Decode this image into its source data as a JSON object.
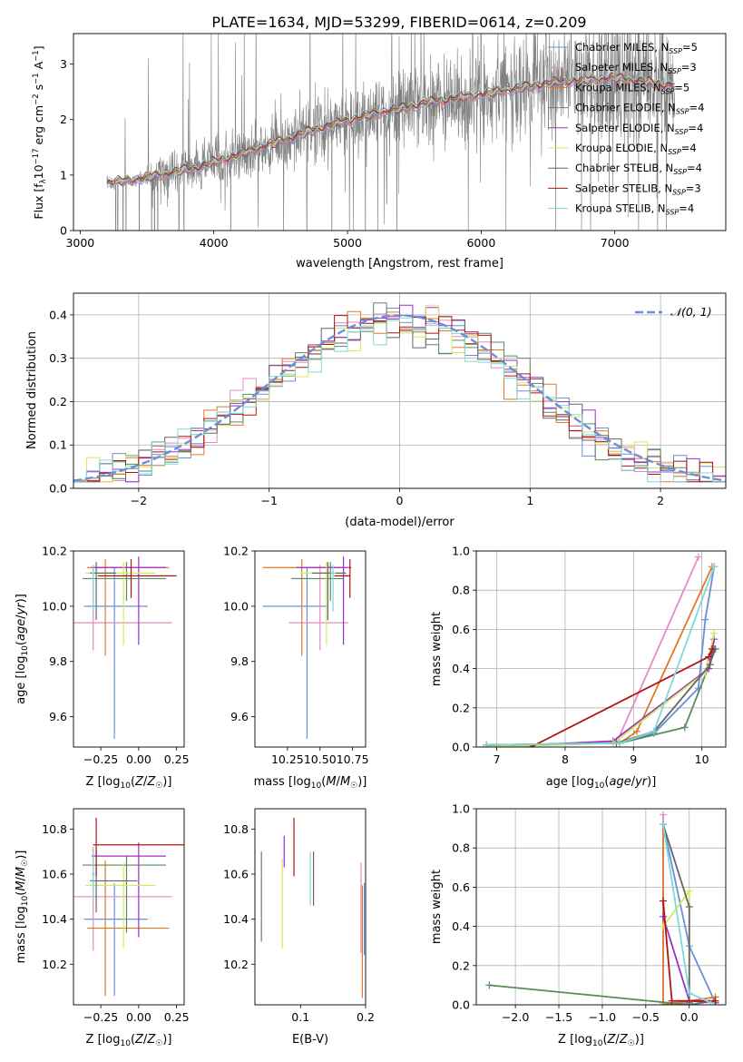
{
  "title": "PLATE=1634, MJD=53299, FIBERID=0614, z=0.209",
  "colors": {
    "chabrier_miles": "#6a8fd8",
    "salpeter_miles": "#e58ac6",
    "kroupa_miles": "#e0782a",
    "chabrier_elodie": "#5b8a5b",
    "salpeter_elodie": "#9b30c8",
    "kroupa_elodie": "#d4e85c",
    "chabrier_stelib": "#666666",
    "salpeter_stelib": "#b01515",
    "kroupa_stelib": "#7fd9d9",
    "observed": "#808080"
  },
  "chart_data": [
    {
      "type": "line",
      "panel": "spectrum",
      "xlabel": "wavelength [Angstrom, rest frame]",
      "ylabel": "Flux [f_λ10^-17 erg cm^-2 s^-1 A^-1]",
      "xlim": [
        2950,
        7830
      ],
      "ylim": [
        0,
        3.55
      ],
      "xticks": [
        "3000",
        "4000",
        "5000",
        "6000",
        "7000"
      ],
      "yticks": [
        "0",
        "1",
        "2",
        "3"
      ],
      "spectrum_anchor": {
        "x": [
          3200,
          3500,
          3900,
          4300,
          4800,
          5200,
          5600,
          6000,
          6500,
          7000,
          7450
        ],
        "y": [
          0.85,
          0.95,
          1.15,
          1.45,
          1.85,
          2.1,
          2.3,
          2.45,
          2.65,
          2.75,
          2.6
        ]
      },
      "legend": [
        "Chabrier MILES, N_SSP=5",
        "Salpeter MILES, N_SSP=3",
        "Kroupa MILES, N_SSP=5",
        "Chabrier ELODIE, N_SSP=4",
        "Salpeter ELODIE, N_SSP=4",
        "Kroupa ELODIE, N_SSP=4",
        "Chabrier STELIB, N_SSP=4",
        "Salpeter STELIB, N_SSP=3",
        "Kroupa STELIB, N_SSP=4"
      ],
      "legend_position": "top-right"
    },
    {
      "type": "area",
      "panel": "residual-histogram",
      "xlabel": "(data-model)/error",
      "ylabel": "Normed distribution",
      "xlim": [
        -2.5,
        2.5
      ],
      "ylim": [
        0,
        0.45
      ],
      "xticks": [
        "−2",
        "−1",
        "0",
        "1",
        "2"
      ],
      "yticks": [
        "0.0",
        "0.1",
        "0.2",
        "0.3",
        "0.4"
      ],
      "grid": true,
      "bin_width": 0.1,
      "reference_curve": "N(0,1)",
      "legend": [
        "𝒩(0, 1)"
      ],
      "legend_position": "top-right"
    },
    {
      "type": "scatter",
      "panel": "age-vs-Z",
      "xlabel": "Z [log10(Z/Z☉)]",
      "ylabel": "age [log10(age/yr)]",
      "xlim": [
        -0.43,
        0.3
      ],
      "ylim": [
        9.49,
        10.2
      ],
      "xticks": [
        "−0.25",
        "0.00",
        "0.25"
      ],
      "yticks": [
        "9.6",
        "9.8",
        "10.0",
        "10.2"
      ],
      "points": [
        {
          "model": "chabrier_miles",
          "x": -0.16,
          "xerr": [
            0.2,
            0.22
          ],
          "y": 10.0,
          "yerr": [
            0.48,
            0.14
          ]
        },
        {
          "model": "salpeter_miles",
          "x": -0.3,
          "xerr": [
            0.13,
            0.52
          ],
          "y": 9.94,
          "yerr": [
            0.1,
            0.21
          ]
        },
        {
          "model": "kroupa_miles",
          "x": -0.22,
          "xerr": [
            0.12,
            0.42
          ],
          "y": 10.14,
          "yerr": [
            0.32,
            0.03
          ]
        },
        {
          "model": "chabrier_elodie",
          "x": -0.08,
          "xerr": [
            0.29,
            0.26
          ],
          "y": 10.1,
          "yerr": [
            0.08,
            0.06
          ]
        },
        {
          "model": "salpeter_elodie",
          "x": 0.0,
          "xerr": [
            0.31,
            0.18
          ],
          "y": 10.14,
          "yerr": [
            0.28,
            0.04
          ]
        },
        {
          "model": "kroupa_elodie",
          "x": -0.1,
          "xerr": [
            0.25,
            0.21
          ],
          "y": 10.12,
          "yerr": [
            0.26,
            0.04
          ]
        },
        {
          "model": "chabrier_stelib",
          "x": -0.28,
          "xerr": [
            0.04,
            0.13
          ],
          "y": 10.12,
          "yerr": [
            0.17,
            0.04
          ]
        },
        {
          "model": "salpeter_stelib",
          "x": -0.05,
          "xerr": [
            0.22,
            0.3
          ],
          "y": 10.11,
          "yerr": [
            0.08,
            0.06
          ]
        },
        {
          "model": "kroupa_stelib",
          "x": -0.3,
          "xerr": [
            0.01,
            0.01
          ],
          "y": 10.12,
          "yerr": [
            0.14,
            0.03
          ]
        }
      ]
    },
    {
      "type": "scatter",
      "panel": "age-vs-mass",
      "xlabel": "mass [log10(M/M☉)]",
      "ylabel": "",
      "xlim": [
        10.0,
        10.85
      ],
      "ylim": [
        9.49,
        10.2
      ],
      "xticks": [
        "10.25",
        "10.50",
        "10.75"
      ],
      "yticks": [
        "9.6",
        "9.8",
        "10.0",
        "10.2"
      ],
      "points": [
        {
          "model": "chabrier_miles",
          "x": 10.4,
          "xerr": [
            0.34,
            0.16
          ],
          "y": 10.0,
          "yerr": [
            0.48,
            0.14
          ]
        },
        {
          "model": "salpeter_miles",
          "x": 10.5,
          "xerr": [
            0.24,
            0.22
          ],
          "y": 9.94,
          "yerr": [
            0.1,
            0.21
          ]
        },
        {
          "model": "kroupa_miles",
          "x": 10.36,
          "xerr": [
            0.3,
            0.3
          ],
          "y": 10.14,
          "yerr": [
            0.32,
            0.03
          ]
        },
        {
          "model": "chabrier_elodie",
          "x": 10.58,
          "xerr": [
            0.3,
            0.1
          ],
          "y": 10.1,
          "yerr": [
            0.08,
            0.06
          ]
        },
        {
          "model": "salpeter_elodie",
          "x": 10.68,
          "xerr": [
            0.36,
            0.06
          ],
          "y": 10.14,
          "yerr": [
            0.28,
            0.04
          ]
        },
        {
          "model": "kroupa_elodie",
          "x": 10.55,
          "xerr": [
            0.2,
            0.1
          ],
          "y": 10.12,
          "yerr": [
            0.26,
            0.04
          ]
        },
        {
          "model": "chabrier_stelib",
          "x": 10.56,
          "xerr": [
            0.12,
            0.14
          ],
          "y": 10.12,
          "yerr": [
            0.17,
            0.04
          ]
        },
        {
          "model": "salpeter_stelib",
          "x": 10.73,
          "xerr": [
            0.12,
            0.0
          ],
          "y": 10.11,
          "yerr": [
            0.08,
            0.06
          ]
        },
        {
          "model": "kroupa_stelib",
          "x": 10.6,
          "xerr": [
            0.02,
            0.02
          ],
          "y": 10.12,
          "yerr": [
            0.14,
            0.03
          ]
        }
      ]
    },
    {
      "type": "line",
      "panel": "massweight-vs-age",
      "xlabel": "age [log10(age/yr)]",
      "ylabel": "mass weight",
      "xlim": [
        6.7,
        10.35
      ],
      "ylim": [
        0,
        1.0
      ],
      "xticks": [
        "7",
        "8",
        "9",
        "10"
      ],
      "yticks": [
        "0.0",
        "0.2",
        "0.4",
        "0.6",
        "0.8",
        "1.0"
      ],
      "grid": true,
      "series": [
        {
          "model": "chabrier_miles",
          "x": [
            6.85,
            8.8,
            9.3,
            9.95,
            10.05,
            10.18
          ],
          "y": [
            0.01,
            0.02,
            0.07,
            0.3,
            0.65,
            0.92
          ]
        },
        {
          "model": "salpeter_miles",
          "x": [
            6.85,
            8.75,
            9.95
          ],
          "y": [
            0.01,
            0.02,
            0.97
          ]
        },
        {
          "model": "kroupa_miles",
          "x": [
            6.85,
            8.8,
            9.05,
            10.15
          ],
          "y": [
            0.01,
            0.02,
            0.08,
            0.92
          ]
        },
        {
          "model": "chabrier_elodie",
          "x": [
            6.85,
            8.8,
            9.75,
            10.2
          ],
          "y": [
            0.01,
            0.02,
            0.1,
            0.5
          ]
        },
        {
          "model": "salpeter_elodie",
          "x": [
            6.85,
            8.7,
            10.1,
            10.18
          ],
          "y": [
            0.0,
            0.03,
            0.4,
            0.55
          ]
        },
        {
          "model": "kroupa_elodie",
          "x": [
            6.85,
            8.7,
            10.05,
            10.18
          ],
          "y": [
            0.0,
            0.02,
            0.38,
            0.58
          ]
        },
        {
          "model": "chabrier_stelib",
          "x": [
            6.85,
            8.75,
            9.3,
            10.12,
            10.18
          ],
          "y": [
            0.01,
            0.02,
            0.08,
            0.42,
            0.5
          ]
        },
        {
          "model": "salpeter_stelib",
          "x": [
            7.5,
            10.1,
            10.15
          ],
          "y": [
            0.0,
            0.46,
            0.5
          ]
        },
        {
          "model": "kroupa_stelib",
          "x": [
            6.85,
            8.8,
            9.3,
            10.18
          ],
          "y": [
            0.01,
            0.02,
            0.08,
            0.92
          ]
        }
      ]
    },
    {
      "type": "scatter",
      "panel": "mass-vs-Z",
      "xlabel": "Z [log10(Z/Z☉)]",
      "ylabel": "mass [log10(M/M☉)]",
      "xlim": [
        -0.43,
        0.3
      ],
      "ylim": [
        10.02,
        10.89
      ],
      "xticks": [
        "−0.25",
        "0.00",
        "0.25"
      ],
      "yticks": [
        "10.2",
        "10.4",
        "10.6",
        "10.8"
      ],
      "points": [
        {
          "model": "chabrier_miles",
          "x": -0.16,
          "xerr": [
            0.2,
            0.22
          ],
          "y": 10.4,
          "yerr": [
            0.34,
            0.16
          ]
        },
        {
          "model": "salpeter_miles",
          "x": -0.3,
          "xerr": [
            0.13,
            0.52
          ],
          "y": 10.5,
          "yerr": [
            0.24,
            0.22
          ]
        },
        {
          "model": "kroupa_miles",
          "x": -0.22,
          "xerr": [
            0.12,
            0.42
          ],
          "y": 10.36,
          "yerr": [
            0.3,
            0.3
          ]
        },
        {
          "model": "chabrier_elodie",
          "x": -0.08,
          "xerr": [
            0.29,
            0.26
          ],
          "y": 10.64,
          "yerr": [
            0.3,
            0.04
          ]
        },
        {
          "model": "salpeter_elodie",
          "x": 0.0,
          "xerr": [
            0.31,
            0.18
          ],
          "y": 10.68,
          "yerr": [
            0.36,
            0.06
          ]
        },
        {
          "model": "kroupa_elodie",
          "x": -0.1,
          "xerr": [
            0.25,
            0.21
          ],
          "y": 10.55,
          "yerr": [
            0.28,
            0.1
          ]
        },
        {
          "model": "chabrier_stelib",
          "x": -0.28,
          "xerr": [
            0.04,
            0.27
          ],
          "y": 10.57,
          "yerr": [
            0.14,
            0.14
          ]
        },
        {
          "model": "salpeter_stelib",
          "x": -0.28,
          "xerr": [
            0.02,
            0.58
          ],
          "y": 10.73,
          "yerr": [
            0.14,
            0.12
          ]
        },
        {
          "model": "kroupa_stelib",
          "x": -0.3,
          "xerr": [
            0.01,
            0.01
          ],
          "y": 10.6,
          "yerr": [
            0.1,
            0.1
          ]
        }
      ]
    },
    {
      "type": "scatter",
      "panel": "mass-vs-EBV",
      "xlabel": "E(B-V)",
      "ylabel": "",
      "xlim": [
        0.03,
        0.2
      ],
      "ylim": [
        10.02,
        10.89
      ],
      "xticks": [
        "0.1",
        "0.2"
      ],
      "yticks": [
        "10.2",
        "10.4",
        "10.6",
        "10.8"
      ],
      "points": [
        {
          "model": "chabrier_elodie",
          "x": 0.04,
          "y": 10.5,
          "yerr": [
            0.2,
            0.2
          ]
        },
        {
          "model": "kroupa_elodie",
          "x": 0.072,
          "y": 10.47,
          "yerr": [
            0.2,
            0.2
          ]
        },
        {
          "model": "salpeter_elodie",
          "x": 0.075,
          "y": 10.69,
          "yerr": [
            0.06,
            0.08
          ]
        },
        {
          "model": "salpeter_stelib",
          "x": 0.09,
          "y": 10.72,
          "yerr": [
            0.13,
            0.13
          ]
        },
        {
          "model": "kroupa_stelib",
          "x": 0.115,
          "y": 10.58,
          "yerr": [
            0.12,
            0.12
          ]
        },
        {
          "model": "chabrier_stelib",
          "x": 0.12,
          "y": 10.58,
          "yerr": [
            0.12,
            0.12
          ]
        },
        {
          "model": "salpeter_miles",
          "x": 0.193,
          "y": 10.45,
          "yerr": [
            0.2,
            0.2
          ]
        },
        {
          "model": "kroupa_miles",
          "x": 0.195,
          "y": 10.3,
          "yerr": [
            0.25,
            0.25
          ]
        },
        {
          "model": "chabrier_miles",
          "x": 0.198,
          "y": 10.4,
          "yerr": [
            0.16,
            0.16
          ]
        }
      ]
    },
    {
      "type": "line",
      "panel": "massweight-vs-Z",
      "xlabel": "Z [log10(Z/Z☉)]",
      "ylabel": "mass weight",
      "xlim": [
        -2.45,
        0.42
      ],
      "ylim": [
        0,
        1.0
      ],
      "xticks": [
        "−2.0",
        "−1.5",
        "−1.0",
        "−0.5",
        "0.0"
      ],
      "yticks": [
        "0.0",
        "0.2",
        "0.4",
        "0.6",
        "0.8",
        "1.0"
      ],
      "grid": true,
      "series": [
        {
          "model": "chabrier_miles",
          "x": [
            -0.3,
            0.0,
            0.3
          ],
          "y": [
            0.92,
            0.3,
            0.01
          ]
        },
        {
          "model": "salpeter_miles",
          "x": [
            -0.3,
            -0.3,
            0.0
          ],
          "y": [
            0.97,
            0.01,
            0.01
          ]
        },
        {
          "model": "kroupa_miles",
          "x": [
            -0.3,
            -0.3,
            0.3,
            0.3
          ],
          "y": [
            0.92,
            0.0,
            0.04,
            0.01
          ]
        },
        {
          "model": "chabrier_elodie",
          "x": [
            -2.3,
            0.0,
            0.3
          ],
          "y": [
            0.1,
            0.0,
            0.02
          ]
        },
        {
          "model": "salpeter_elodie",
          "x": [
            -0.3,
            0.0,
            0.3
          ],
          "y": [
            0.45,
            0.02,
            0.01
          ]
        },
        {
          "model": "kroupa_elodie",
          "x": [
            -0.3,
            0.0,
            0.0
          ],
          "y": [
            0.4,
            0.58,
            0.02
          ]
        },
        {
          "model": "chabrier_stelib",
          "x": [
            -0.3,
            0.0,
            0.0
          ],
          "y": [
            0.92,
            0.5,
            0.01
          ]
        },
        {
          "model": "salpeter_stelib",
          "x": [
            -0.3,
            -0.2,
            0.3
          ],
          "y": [
            0.53,
            0.02,
            0.02
          ]
        },
        {
          "model": "kroupa_stelib",
          "x": [
            -0.3,
            0.0,
            0.25
          ],
          "y": [
            0.92,
            0.06,
            0.01
          ]
        }
      ]
    }
  ]
}
